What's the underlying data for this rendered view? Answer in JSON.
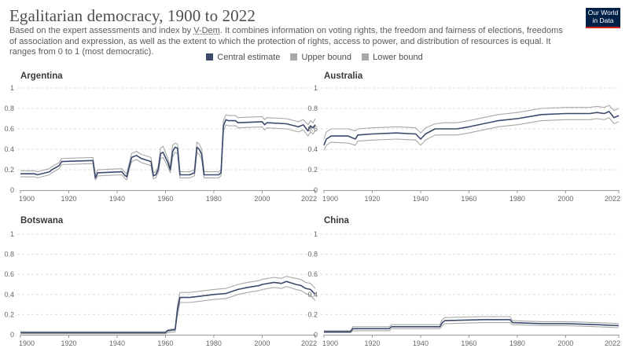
{
  "header": {
    "title": "Egalitarian democracy, 1900 to 2022",
    "subtitle_before_link": "Based on the expert assessments and index by ",
    "subtitle_link": "V-Dem",
    "subtitle_after_link": ". It combines information on voting rights, the freedom and fairness of elections, freedoms of association and expression, as well as the extent to which the protection of rights, access to power, and distribution of resources is equal. It ranges from 0 to 1 (most democratic).",
    "logo_line1": "Our World",
    "logo_line2": "in Data"
  },
  "colors": {
    "central": "#3b4a6b",
    "upper": "#a8a8a8",
    "lower": "#a8a8a8"
  },
  "legend": [
    {
      "label": "Central estimate",
      "color": "#3b4a6b"
    },
    {
      "label": "Upper bound",
      "color": "#a8a8a8"
    },
    {
      "label": "Lower bound",
      "color": "#a8a8a8"
    }
  ],
  "chart_data": [
    {
      "type": "line",
      "title": "Argentina",
      "xlim": [
        1900,
        2022
      ],
      "ylim": [
        0,
        1
      ],
      "x_ticks": [
        "1900",
        "1920",
        "1940",
        "1960",
        "1980",
        "2000",
        "2022"
      ],
      "y_ticks": [
        "0",
        "0.2",
        "0.4",
        "0.6",
        "0.8",
        "1"
      ],
      "grid": true,
      "series": [
        {
          "name": "Central estimate",
          "x": [
            1900,
            1906,
            1907,
            1912,
            1913,
            1916,
            1917,
            1930,
            1931,
            1932,
            1942,
            1943,
            1944,
            1945,
            1946,
            1948,
            1950,
            1954,
            1955,
            1956,
            1957,
            1958,
            1959,
            1961,
            1962,
            1963,
            1964,
            1965,
            1966,
            1970,
            1972,
            1973,
            1974,
            1975,
            1976,
            1982,
            1983,
            1984,
            1985,
            1986,
            1989,
            1990,
            2000,
            2001,
            2002,
            2010,
            2015,
            2017,
            2019,
            2020,
            2021,
            2022
          ],
          "y": [
            0.16,
            0.16,
            0.15,
            0.18,
            0.2,
            0.24,
            0.28,
            0.29,
            0.12,
            0.17,
            0.18,
            0.15,
            0.13,
            0.23,
            0.32,
            0.34,
            0.31,
            0.28,
            0.14,
            0.15,
            0.2,
            0.36,
            0.37,
            0.27,
            0.2,
            0.38,
            0.42,
            0.41,
            0.15,
            0.15,
            0.17,
            0.42,
            0.4,
            0.35,
            0.15,
            0.15,
            0.17,
            0.63,
            0.69,
            0.68,
            0.68,
            0.66,
            0.67,
            0.64,
            0.66,
            0.65,
            0.62,
            0.64,
            0.58,
            0.63,
            0.61,
            0.64
          ]
        },
        {
          "name": "Upper bound",
          "x": [
            1900,
            1906,
            1907,
            1912,
            1913,
            1916,
            1917,
            1930,
            1931,
            1932,
            1942,
            1943,
            1944,
            1945,
            1946,
            1948,
            1950,
            1954,
            1955,
            1956,
            1957,
            1958,
            1959,
            1961,
            1962,
            1963,
            1964,
            1965,
            1966,
            1970,
            1972,
            1973,
            1974,
            1975,
            1976,
            1982,
            1983,
            1984,
            1985,
            1986,
            1989,
            1990,
            2000,
            2001,
            2002,
            2010,
            2015,
            2017,
            2019,
            2020,
            2021,
            2022
          ],
          "y": [
            0.19,
            0.19,
            0.18,
            0.21,
            0.23,
            0.27,
            0.31,
            0.32,
            0.15,
            0.2,
            0.21,
            0.18,
            0.16,
            0.26,
            0.36,
            0.38,
            0.35,
            0.32,
            0.17,
            0.18,
            0.23,
            0.41,
            0.43,
            0.31,
            0.23,
            0.44,
            0.46,
            0.45,
            0.18,
            0.18,
            0.2,
            0.47,
            0.45,
            0.4,
            0.18,
            0.18,
            0.2,
            0.68,
            0.74,
            0.73,
            0.73,
            0.71,
            0.72,
            0.69,
            0.71,
            0.7,
            0.67,
            0.69,
            0.64,
            0.68,
            0.66,
            0.7
          ]
        },
        {
          "name": "Lower bound",
          "x": [
            1900,
            1906,
            1907,
            1912,
            1913,
            1916,
            1917,
            1930,
            1931,
            1932,
            1942,
            1943,
            1944,
            1945,
            1946,
            1948,
            1950,
            1954,
            1955,
            1956,
            1957,
            1958,
            1959,
            1961,
            1962,
            1963,
            1964,
            1965,
            1966,
            1970,
            1972,
            1973,
            1974,
            1975,
            1976,
            1982,
            1983,
            1984,
            1985,
            1986,
            1989,
            1990,
            2000,
            2001,
            2002,
            2010,
            2015,
            2017,
            2019,
            2020,
            2021,
            2022
          ],
          "y": [
            0.13,
            0.13,
            0.12,
            0.15,
            0.17,
            0.21,
            0.25,
            0.26,
            0.1,
            0.14,
            0.15,
            0.12,
            0.1,
            0.2,
            0.28,
            0.3,
            0.27,
            0.24,
            0.11,
            0.12,
            0.17,
            0.31,
            0.32,
            0.23,
            0.17,
            0.33,
            0.37,
            0.36,
            0.12,
            0.12,
            0.14,
            0.37,
            0.35,
            0.3,
            0.12,
            0.12,
            0.14,
            0.58,
            0.64,
            0.63,
            0.63,
            0.61,
            0.62,
            0.59,
            0.61,
            0.6,
            0.57,
            0.59,
            0.53,
            0.57,
            0.55,
            0.58
          ]
        }
      ]
    },
    {
      "type": "line",
      "title": "Australia",
      "xlim": [
        1900,
        2022
      ],
      "ylim": [
        0,
        1
      ],
      "x_ticks": [
        "1900",
        "1920",
        "1940",
        "1960",
        "1980",
        "2000",
        "2022"
      ],
      "y_ticks": [
        "0",
        "0.2",
        "0.4",
        "0.6",
        "0.8",
        "1"
      ],
      "grid": true,
      "series": [
        {
          "name": "Central estimate",
          "x": [
            1900,
            1901,
            1903,
            1910,
            1913,
            1914,
            1920,
            1930,
            1938,
            1940,
            1942,
            1946,
            1950,
            1955,
            1960,
            1966,
            1972,
            1980,
            1985,
            1990,
            2000,
            2005,
            2010,
            2013,
            2016,
            2018,
            2020,
            2022
          ],
          "y": [
            0.44,
            0.5,
            0.53,
            0.53,
            0.5,
            0.54,
            0.55,
            0.56,
            0.55,
            0.5,
            0.55,
            0.6,
            0.6,
            0.6,
            0.62,
            0.65,
            0.68,
            0.7,
            0.72,
            0.74,
            0.75,
            0.75,
            0.75,
            0.76,
            0.75,
            0.77,
            0.71,
            0.73
          ]
        },
        {
          "name": "Upper bound",
          "x": [
            1900,
            1901,
            1903,
            1910,
            1913,
            1914,
            1920,
            1930,
            1938,
            1940,
            1942,
            1946,
            1950,
            1955,
            1960,
            1966,
            1972,
            1980,
            1985,
            1990,
            2000,
            2005,
            2010,
            2013,
            2016,
            2018,
            2020,
            2022
          ],
          "y": [
            0.5,
            0.57,
            0.6,
            0.6,
            0.58,
            0.6,
            0.61,
            0.62,
            0.61,
            0.56,
            0.61,
            0.65,
            0.66,
            0.66,
            0.68,
            0.71,
            0.74,
            0.76,
            0.78,
            0.8,
            0.81,
            0.81,
            0.81,
            0.82,
            0.81,
            0.83,
            0.78,
            0.8
          ]
        },
        {
          "name": "Lower bound",
          "x": [
            1900,
            1901,
            1903,
            1910,
            1913,
            1914,
            1920,
            1930,
            1938,
            1940,
            1942,
            1946,
            1950,
            1955,
            1960,
            1966,
            1972,
            1980,
            1985,
            1990,
            2000,
            2005,
            2010,
            2013,
            2016,
            2018,
            2020,
            2022
          ],
          "y": [
            0.39,
            0.44,
            0.47,
            0.46,
            0.44,
            0.48,
            0.49,
            0.5,
            0.49,
            0.44,
            0.49,
            0.54,
            0.54,
            0.54,
            0.56,
            0.59,
            0.62,
            0.64,
            0.66,
            0.68,
            0.69,
            0.69,
            0.69,
            0.7,
            0.69,
            0.71,
            0.65,
            0.67
          ]
        }
      ]
    },
    {
      "type": "line",
      "title": "Botswana",
      "xlim": [
        1900,
        2022
      ],
      "ylim": [
        0,
        1
      ],
      "x_ticks": [
        "1900",
        "1920",
        "1940",
        "1960",
        "1980",
        "2000",
        "2022"
      ],
      "y_ticks": [
        "0",
        "0.2",
        "0.4",
        "0.6",
        "0.8",
        "1"
      ],
      "grid": true,
      "series": [
        {
          "name": "Central estimate",
          "x": [
            1900,
            1960,
            1961,
            1964,
            1965,
            1966,
            1970,
            1980,
            1985,
            1990,
            1994,
            1999,
            2000,
            2005,
            2008,
            2010,
            2014,
            2016,
            2018,
            2020,
            2022
          ],
          "y": [
            0.02,
            0.02,
            0.04,
            0.05,
            0.25,
            0.37,
            0.37,
            0.4,
            0.41,
            0.45,
            0.47,
            0.49,
            0.5,
            0.52,
            0.51,
            0.53,
            0.5,
            0.49,
            0.46,
            0.45,
            0.4
          ]
        },
        {
          "name": "Upper bound",
          "x": [
            1900,
            1960,
            1961,
            1964,
            1965,
            1966,
            1970,
            1980,
            1985,
            1990,
            1994,
            1999,
            2000,
            2005,
            2008,
            2010,
            2014,
            2016,
            2018,
            2020,
            2022
          ],
          "y": [
            0.03,
            0.03,
            0.05,
            0.06,
            0.3,
            0.42,
            0.42,
            0.45,
            0.46,
            0.5,
            0.52,
            0.54,
            0.55,
            0.57,
            0.56,
            0.58,
            0.56,
            0.55,
            0.52,
            0.51,
            0.46
          ]
        },
        {
          "name": "Lower bound",
          "x": [
            1900,
            1960,
            1961,
            1964,
            1965,
            1966,
            1970,
            1980,
            1985,
            1990,
            1994,
            1999,
            2000,
            2005,
            2008,
            2010,
            2014,
            2016,
            2018,
            2020,
            2022
          ],
          "y": [
            0.01,
            0.01,
            0.02,
            0.03,
            0.2,
            0.32,
            0.32,
            0.35,
            0.36,
            0.4,
            0.42,
            0.44,
            0.45,
            0.47,
            0.46,
            0.48,
            0.45,
            0.44,
            0.41,
            0.39,
            0.34
          ]
        }
      ]
    },
    {
      "type": "line",
      "title": "China",
      "xlim": [
        1900,
        2022
      ],
      "ylim": [
        0,
        1
      ],
      "x_ticks": [
        "1900",
        "1920",
        "1940",
        "1960",
        "1980",
        "2000",
        "2022"
      ],
      "y_ticks": [
        "0",
        "0.2",
        "0.4",
        "0.6",
        "0.8",
        "1"
      ],
      "grid": true,
      "series": [
        {
          "name": "Central estimate",
          "x": [
            1900,
            1911,
            1912,
            1927,
            1928,
            1948,
            1949,
            1950,
            1966,
            1977,
            1978,
            1990,
            2000,
            2013,
            2022
          ],
          "y": [
            0.03,
            0.03,
            0.06,
            0.06,
            0.08,
            0.08,
            0.12,
            0.14,
            0.15,
            0.15,
            0.12,
            0.11,
            0.11,
            0.1,
            0.09
          ]
        },
        {
          "name": "Upper bound",
          "x": [
            1900,
            1911,
            1912,
            1927,
            1928,
            1948,
            1949,
            1950,
            1966,
            1977,
            1978,
            1990,
            2000,
            2013,
            2022
          ],
          "y": [
            0.04,
            0.04,
            0.08,
            0.08,
            0.1,
            0.1,
            0.15,
            0.17,
            0.18,
            0.18,
            0.14,
            0.13,
            0.13,
            0.12,
            0.11
          ]
        },
        {
          "name": "Lower bound",
          "x": [
            1900,
            1911,
            1912,
            1927,
            1928,
            1948,
            1949,
            1950,
            1966,
            1977,
            1978,
            1990,
            2000,
            2013,
            2022
          ],
          "y": [
            0.02,
            0.02,
            0.04,
            0.04,
            0.06,
            0.06,
            0.09,
            0.11,
            0.12,
            0.12,
            0.1,
            0.09,
            0.09,
            0.08,
            0.07
          ]
        }
      ]
    }
  ]
}
